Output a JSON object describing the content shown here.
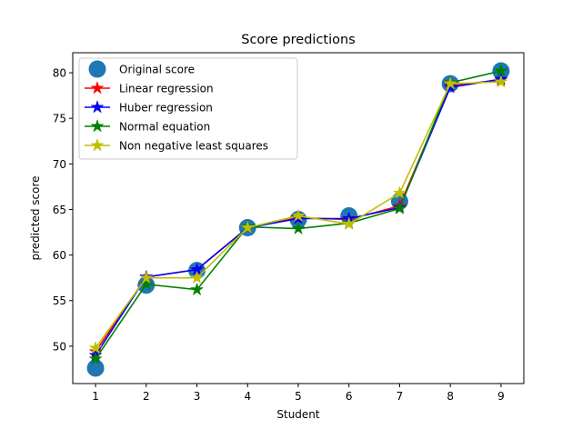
{
  "chart_data": {
    "type": "line",
    "title": "Score predictions",
    "xlabel": "Student",
    "ylabel": "predicted score",
    "x": [
      1,
      2,
      3,
      4,
      5,
      6,
      7,
      8,
      9
    ],
    "xlim": [
      0.55,
      9.45
    ],
    "ylim": [
      45.9,
      82.2
    ],
    "xticks": [
      1,
      2,
      3,
      4,
      5,
      6,
      7,
      8,
      9
    ],
    "yticks": [
      50,
      55,
      60,
      65,
      70,
      75,
      80
    ],
    "grid": false,
    "legend_position": "top-left",
    "series": [
      {
        "name": "Original score",
        "style": "scatter",
        "marker": "circle",
        "color": "#1f77b4",
        "values": [
          47.6,
          56.7,
          58.3,
          63.0,
          63.9,
          64.3,
          65.9,
          78.8,
          80.2
        ]
      },
      {
        "name": "Linear regression",
        "style": "line",
        "marker": "star",
        "color": "#ff0000",
        "values": [
          49.4,
          57.6,
          58.4,
          63.0,
          64.1,
          63.9,
          65.4,
          78.6,
          79.2
        ]
      },
      {
        "name": "Huber regression",
        "style": "line",
        "marker": "star",
        "color": "#0000ff",
        "values": [
          49.0,
          57.6,
          58.4,
          63.0,
          64.0,
          64.0,
          65.2,
          78.4,
          79.3
        ]
      },
      {
        "name": "Normal equation",
        "style": "line",
        "marker": "star",
        "color": "#008000",
        "values": [
          48.6,
          56.8,
          56.2,
          63.1,
          62.9,
          63.5,
          65.1,
          78.9,
          80.2
        ]
      },
      {
        "name": "Non negative least squares",
        "style": "line",
        "marker": "star",
        "color": "#bfbf00",
        "values": [
          49.8,
          57.5,
          57.5,
          63.0,
          64.3,
          63.4,
          66.8,
          78.8,
          79.0
        ]
      }
    ]
  }
}
